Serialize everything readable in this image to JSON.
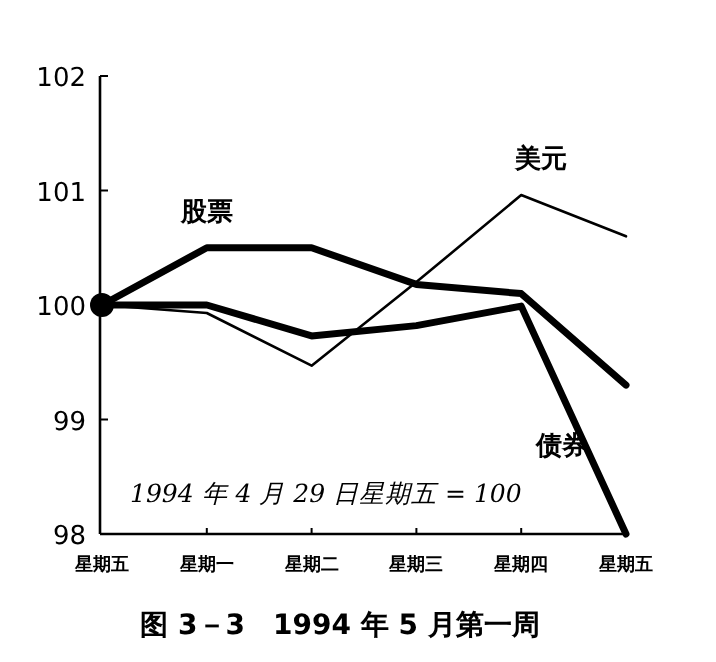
{
  "chart_data": {
    "type": "line",
    "title": "图 3－3　1994 年 5 月第一周",
    "annotations": [
      "1994 年 4 月 29 日星期五 = 100"
    ],
    "categories": [
      "星期五",
      "星期一",
      "星期二",
      "星期三",
      "星期四",
      "星期五"
    ],
    "ylim": [
      98,
      102
    ],
    "yticks": [
      98,
      99,
      100,
      101,
      102
    ],
    "series": [
      {
        "name": "股票",
        "color": "#000000",
        "values": [
          100,
          100.5,
          100.5,
          100.18,
          100.1,
          99.3
        ]
      },
      {
        "name": "美元",
        "color": "#000000",
        "values": [
          100,
          99.93,
          99.47,
          100.2,
          100.96,
          100.6
        ]
      },
      {
        "name": "债券",
        "color": "#000000",
        "values": [
          100,
          100,
          99.73,
          99.82,
          99.99,
          98
        ]
      }
    ]
  }
}
